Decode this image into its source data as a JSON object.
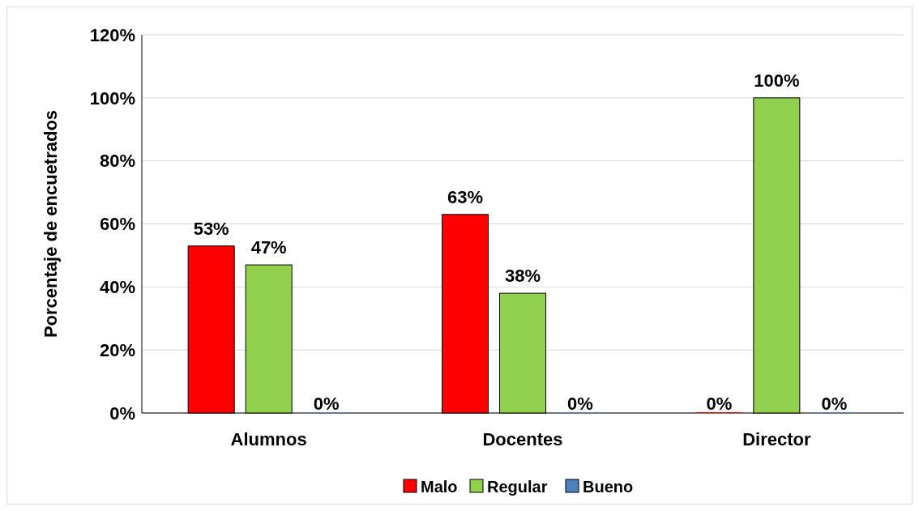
{
  "chart_data": {
    "type": "bar",
    "ylabel": "Porcentaje de encuetrados",
    "categories": [
      "Alumnos",
      "Docentes",
      "Director"
    ],
    "series": [
      {
        "name": "Malo",
        "color": "#ff0000",
        "values": [
          53,
          63,
          0
        ],
        "value_labels": [
          "53%",
          "63%",
          "0%"
        ]
      },
      {
        "name": "Regular",
        "color": "#92d050",
        "values": [
          47,
          38,
          100
        ],
        "value_labels": [
          "47%",
          "38%",
          "100%"
        ]
      },
      {
        "name": "Bueno",
        "color": "#4f81bd",
        "values": [
          0,
          0,
          0
        ],
        "value_labels": [
          "0%",
          "0%",
          "0%"
        ]
      }
    ],
    "ylim": [
      0,
      120
    ],
    "yticks": [
      {
        "value": 0,
        "label": "0%"
      },
      {
        "value": 20,
        "label": "20%"
      },
      {
        "value": 40,
        "label": "40%"
      },
      {
        "value": 60,
        "label": "60%"
      },
      {
        "value": 80,
        "label": "80%"
      },
      {
        "value": 100,
        "label": "100%"
      },
      {
        "value": 120,
        "label": "120%"
      }
    ],
    "grid": "y",
    "legend": "bottom"
  }
}
